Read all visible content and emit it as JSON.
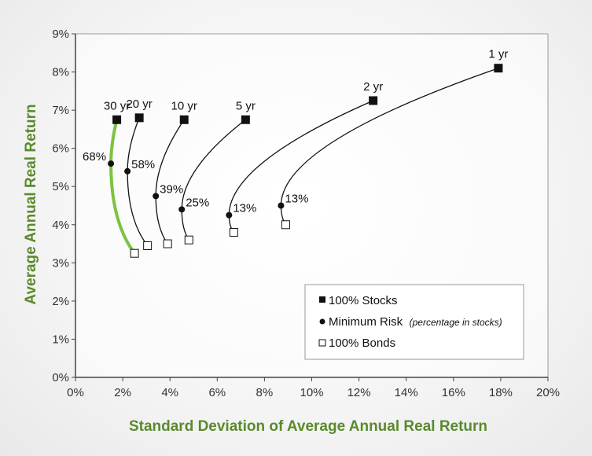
{
  "chart_data": {
    "type": "line",
    "xlabel": "Standard Deviation of Average Annual Real Return",
    "ylabel": "Average Annual Real Return",
    "xlim": [
      0,
      20
    ],
    "ylim": [
      0,
      9
    ],
    "x_ticks": [
      "0%",
      "2%",
      "4%",
      "6%",
      "8%",
      "10%",
      "12%",
      "14%",
      "16%",
      "18%",
      "20%"
    ],
    "y_ticks": [
      "0%",
      "1%",
      "2%",
      "3%",
      "4%",
      "5%",
      "6%",
      "7%",
      "8%",
      "9%"
    ],
    "grid": false,
    "legend_position": "bottom-right",
    "legend": [
      {
        "marker": "filled-square",
        "label": "100% Stocks",
        "note": ""
      },
      {
        "marker": "filled-circle",
        "label": "Minimum Risk",
        "note": "(percentage in stocks)"
      },
      {
        "marker": "open-square",
        "label": "100% Bonds",
        "note": ""
      }
    ],
    "series": [
      {
        "name": "1 yr",
        "highlight": false,
        "stocks": {
          "x": 17.9,
          "y": 8.1
        },
        "min_risk": {
          "x": 8.7,
          "y": 4.5,
          "label": "13%"
        },
        "bonds": {
          "x": 8.9,
          "y": 4.0
        }
      },
      {
        "name": "2 yr",
        "highlight": false,
        "stocks": {
          "x": 12.6,
          "y": 7.25
        },
        "min_risk": {
          "x": 6.5,
          "y": 4.25,
          "label": "13%"
        },
        "bonds": {
          "x": 6.7,
          "y": 3.8
        }
      },
      {
        "name": "5 yr",
        "highlight": false,
        "stocks": {
          "x": 7.2,
          "y": 6.75
        },
        "min_risk": {
          "x": 4.5,
          "y": 4.4,
          "label": "25%"
        },
        "bonds": {
          "x": 4.8,
          "y": 3.6
        }
      },
      {
        "name": "10 yr",
        "highlight": false,
        "stocks": {
          "x": 4.6,
          "y": 6.75
        },
        "min_risk": {
          "x": 3.4,
          "y": 4.75,
          "label": "39%"
        },
        "bonds": {
          "x": 3.9,
          "y": 3.5
        }
      },
      {
        "name": "20 yr",
        "highlight": false,
        "stocks": {
          "x": 2.7,
          "y": 6.8
        },
        "min_risk": {
          "x": 2.2,
          "y": 5.4,
          "label": "58%"
        },
        "bonds": {
          "x": 3.05,
          "y": 3.45
        }
      },
      {
        "name": "30 yr",
        "highlight": true,
        "stocks": {
          "x": 1.75,
          "y": 6.75
        },
        "min_risk": {
          "x": 1.5,
          "y": 5.6,
          "label": "68%"
        },
        "bonds": {
          "x": 2.5,
          "y": 3.25
        }
      }
    ],
    "colors": {
      "curve": "#111111",
      "highlight_curve": "#7dc242",
      "axis_title": "#5a8a2c",
      "axis": "#444444",
      "plot_border": "#9a9a9a"
    }
  }
}
